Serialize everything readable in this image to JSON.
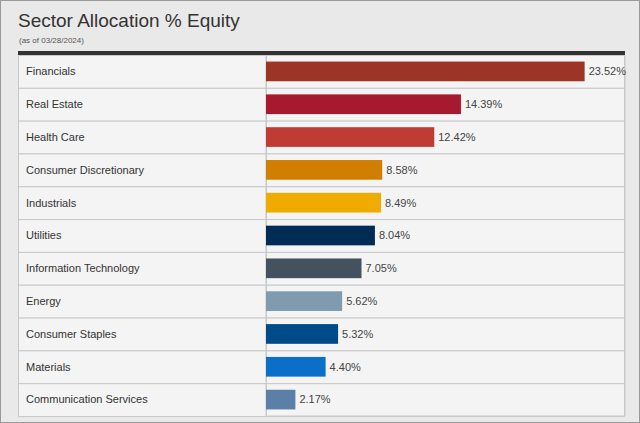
{
  "chart_data": {
    "type": "bar",
    "orientation": "horizontal",
    "title": "Sector Allocation % Equity",
    "subtitle": "(as of 03/28/2024)",
    "categories": [
      "Financials",
      "Real Estate",
      "Health Care",
      "Consumer Discretionary",
      "Industrials",
      "Utilities",
      "Information Technology",
      "Energy",
      "Consumer Staples",
      "Materials",
      "Communication Services"
    ],
    "values": [
      23.52,
      14.39,
      12.42,
      8.58,
      8.49,
      8.04,
      7.05,
      5.62,
      5.32,
      4.4,
      2.17
    ],
    "value_labels": [
      "23.52%",
      "14.39%",
      "12.42%",
      "8.58%",
      "8.49%",
      "8.04%",
      "7.05%",
      "5.62%",
      "5.32%",
      "4.40%",
      "2.17%"
    ],
    "colors": [
      "#9c3526",
      "#a6192e",
      "#c13b35",
      "#d17f00",
      "#f0ab00",
      "#002b55",
      "#44525f",
      "#809bb0",
      "#004a8a",
      "#0b6fc9",
      "#5c7fa8"
    ],
    "xlim": [
      0,
      26.5
    ],
    "data_labels": true,
    "tick_labels": false
  }
}
